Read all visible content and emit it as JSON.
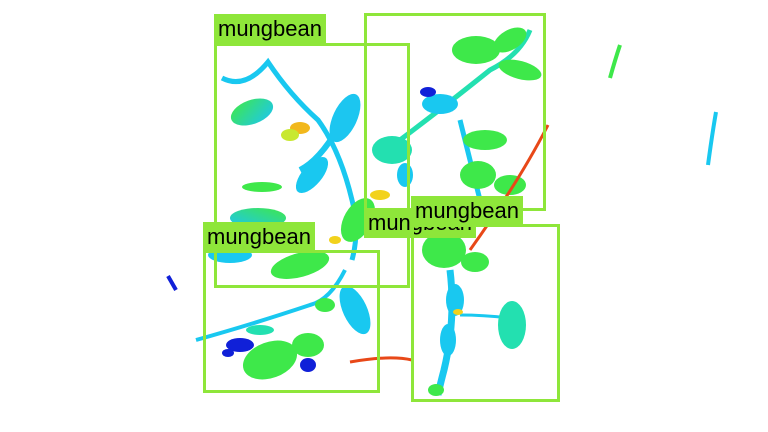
{
  "detection": {
    "box_color": "#8ee63a",
    "labels": [
      "mungbean",
      "mungbean",
      "mungbean",
      "mungbean"
    ]
  },
  "plant_colors": {
    "leaf_green": "#3ee84a",
    "leaf_cyan": "#19c8f0",
    "leaf_mid": "#23e0b0",
    "stem_red": "#e84818",
    "spot_yellow": "#f2d21c",
    "spot_blue": "#1020d8"
  }
}
